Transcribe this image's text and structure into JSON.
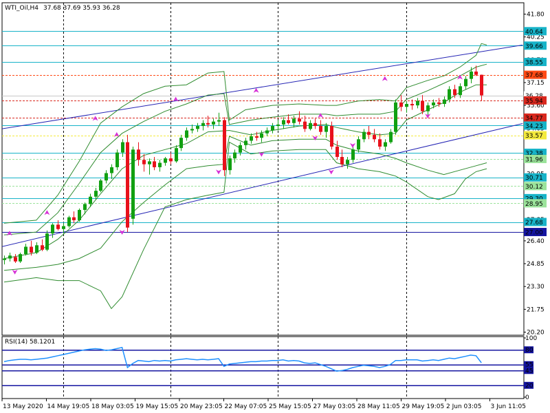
{
  "chart_data": {
    "type": "candlestick",
    "header": {
      "symbol": "WTI_Oil,H4",
      "ohlc": "37.68 37.69 35.93 36.28"
    },
    "y_ticks": [
      "41.80",
      "40.25",
      "38.70",
      "37.15",
      "35.60",
      "34.05",
      "32.50",
      "30.95",
      "29.40",
      "27.85",
      "26.40",
      "24.85",
      "23.30",
      "21.75",
      "20.20"
    ],
    "x_labels": [
      "13 May 2020",
      "14 May 19:05",
      "18 May 03:05",
      "19 May 15:05",
      "20 May 23:05",
      "22 May 07:05",
      "25 May 15:05",
      "27 May 03:05",
      "28 May 11:05",
      "29 May 19:05",
      "2 Jun 03:05",
      "3 Jun 11:05"
    ],
    "levels": [
      {
        "label": "40.64",
        "value": 40.64,
        "color": "#17b3c8",
        "style": "solid"
      },
      {
        "label": "39.66",
        "value": 39.66,
        "color": "#17b3c8",
        "style": "solid"
      },
      {
        "label": "38.55",
        "value": 38.55,
        "color": "#17b3c8",
        "style": "solid"
      },
      {
        "label": "37.68",
        "value": 37.68,
        "color": "#ff4a14",
        "style": "dashed"
      },
      {
        "label": "36.28",
        "value": 36.28,
        "color": "#c8c8c8",
        "style": "solid"
      },
      {
        "label": "35.94",
        "value": 35.94,
        "color": "#d9281e",
        "style": "dashed"
      },
      {
        "label": "34.77",
        "value": 34.77,
        "color": "#d9281e",
        "style": "dashed"
      },
      {
        "label": "34.23",
        "value": 34.23,
        "color": "#17b3c8",
        "style": "solid"
      },
      {
        "label": "33.57",
        "value": 33.57,
        "color": "#f4ea3c",
        "style": "dashed"
      },
      {
        "label": "32.38",
        "value": 32.38,
        "color": "#17b3c8",
        "style": "solid"
      },
      {
        "label": "31.96",
        "value": 31.96,
        "color": "#9be39b",
        "style": "dashed"
      },
      {
        "label": "30.71",
        "value": 30.71,
        "color": "#17b3c8",
        "style": "solid"
      },
      {
        "label": "30.12",
        "value": 30.12,
        "color": "#9be39b",
        "style": "dashed"
      },
      {
        "label": "29.30",
        "value": 29.3,
        "color": "#17b3c8",
        "style": "solid"
      },
      {
        "label": "28.95",
        "value": 28.95,
        "color": "#9be39b",
        "style": "dashed"
      },
      {
        "label": "27.68",
        "value": 27.68,
        "color": "#17b3c8",
        "style": "solid"
      },
      {
        "label": "27.00",
        "value": 27.0,
        "color": "#1414a0",
        "style": "solid"
      }
    ],
    "channel": {
      "upper": [
        [
          0,
          34.0
        ],
        [
          100,
          39.25
        ]
      ],
      "lower": [
        [
          0,
          26.0
        ],
        [
          100,
          33.7
        ]
      ]
    },
    "candles": [
      [
        25.1,
        25.4,
        24.8,
        25.2
      ],
      [
        25.2,
        25.6,
        25.0,
        25.4
      ],
      [
        25.3,
        25.5,
        24.9,
        25.0
      ],
      [
        25.0,
        25.6,
        24.9,
        25.5
      ],
      [
        25.5,
        26.2,
        25.4,
        26.0
      ],
      [
        26.0,
        26.4,
        25.4,
        25.6
      ],
      [
        25.6,
        26.3,
        25.5,
        26.1
      ],
      [
        26.1,
        26.5,
        25.7,
        25.8
      ],
      [
        25.8,
        27.1,
        25.7,
        26.9
      ],
      [
        26.9,
        27.6,
        26.6,
        27.5
      ],
      [
        27.5,
        27.8,
        27.1,
        27.2
      ],
      [
        27.2,
        27.6,
        26.9,
        27.4
      ],
      [
        27.4,
        28.1,
        27.3,
        28.0
      ],
      [
        28.0,
        28.4,
        27.6,
        27.8
      ],
      [
        27.8,
        28.6,
        27.7,
        28.5
      ],
      [
        28.5,
        29.0,
        28.2,
        28.9
      ],
      [
        28.9,
        29.6,
        28.7,
        29.4
      ],
      [
        29.4,
        30.0,
        29.2,
        29.8
      ],
      [
        29.8,
        30.6,
        29.7,
        30.5
      ],
      [
        30.5,
        31.2,
        30.3,
        31.0
      ],
      [
        31.0,
        31.6,
        30.6,
        31.4
      ],
      [
        31.4,
        32.6,
        31.2,
        32.4
      ],
      [
        32.4,
        33.3,
        32.1,
        33.1
      ],
      [
        33.1,
        33.6,
        27.0,
        27.3
      ],
      [
        27.9,
        32.8,
        27.5,
        32.6
      ],
      [
        32.6,
        33.1,
        31.5,
        31.9
      ],
      [
        31.9,
        32.3,
        31.1,
        31.6
      ],
      [
        31.6,
        32.0,
        30.9,
        31.8
      ],
      [
        31.8,
        32.1,
        31.2,
        31.4
      ],
      [
        31.4,
        31.9,
        31.1,
        31.7
      ],
      [
        31.7,
        32.1,
        31.5,
        32.0
      ],
      [
        32.0,
        32.4,
        31.6,
        31.8
      ],
      [
        31.8,
        32.9,
        31.7,
        32.7
      ],
      [
        32.7,
        33.6,
        32.5,
        33.4
      ],
      [
        33.4,
        34.1,
        33.2,
        33.9
      ],
      [
        33.9,
        34.3,
        33.7,
        34.0
      ],
      [
        34.0,
        34.4,
        33.8,
        34.2
      ],
      [
        34.2,
        34.6,
        33.9,
        34.4
      ],
      [
        34.4,
        34.9,
        34.1,
        34.3
      ],
      [
        34.3,
        34.7,
        34.0,
        34.5
      ],
      [
        34.5,
        35.1,
        34.2,
        34.6
      ],
      [
        34.6,
        34.8,
        30.8,
        31.2
      ],
      [
        31.2,
        32.2,
        30.9,
        32.0
      ],
      [
        32.0,
        32.6,
        31.7,
        32.4
      ],
      [
        32.4,
        33.1,
        32.2,
        32.9
      ],
      [
        32.9,
        33.4,
        32.6,
        33.2
      ],
      [
        33.2,
        33.7,
        33.0,
        33.5
      ],
      [
        33.5,
        33.8,
        33.2,
        33.4
      ],
      [
        33.4,
        33.9,
        33.1,
        33.7
      ],
      [
        33.7,
        34.1,
        33.5,
        33.9
      ],
      [
        33.9,
        34.4,
        33.7,
        34.2
      ],
      [
        34.2,
        34.6,
        33.9,
        34.3
      ],
      [
        34.3,
        34.8,
        34.0,
        34.6
      ],
      [
        34.6,
        35.0,
        34.3,
        34.4
      ],
      [
        34.4,
        34.9,
        34.1,
        34.7
      ],
      [
        34.7,
        35.2,
        34.3,
        34.5
      ],
      [
        34.5,
        34.9,
        33.8,
        34.0
      ],
      [
        34.0,
        34.6,
        33.9,
        34.4
      ],
      [
        34.4,
        34.7,
        34.0,
        34.2
      ],
      [
        34.2,
        34.6,
        33.6,
        33.8
      ],
      [
        33.8,
        34.4,
        33.4,
        34.2
      ],
      [
        34.2,
        34.5,
        32.6,
        32.8
      ],
      [
        32.8,
        33.2,
        31.9,
        32.1
      ],
      [
        32.1,
        32.6,
        31.4,
        31.6
      ],
      [
        31.6,
        32.1,
        31.3,
        31.9
      ],
      [
        31.9,
        32.8,
        31.7,
        32.6
      ],
      [
        32.6,
        33.5,
        32.4,
        33.3
      ],
      [
        33.3,
        34.0,
        33.1,
        33.8
      ],
      [
        33.8,
        34.2,
        33.3,
        33.6
      ],
      [
        33.6,
        34.0,
        33.1,
        33.3
      ],
      [
        33.3,
        33.7,
        32.6,
        32.8
      ],
      [
        32.8,
        33.3,
        32.5,
        33.1
      ],
      [
        33.1,
        34.0,
        33.0,
        33.8
      ],
      [
        33.8,
        36.0,
        33.6,
        35.8
      ],
      [
        35.8,
        36.3,
        35.2,
        35.5
      ],
      [
        35.5,
        35.9,
        35.1,
        35.7
      ],
      [
        35.7,
        36.0,
        35.3,
        35.6
      ],
      [
        35.6,
        36.1,
        35.4,
        35.9
      ],
      [
        35.9,
        36.3,
        35.0,
        35.2
      ],
      [
        35.2,
        35.8,
        34.9,
        35.6
      ],
      [
        35.6,
        36.0,
        35.4,
        35.8
      ],
      [
        35.8,
        36.1,
        35.5,
        35.7
      ],
      [
        35.7,
        36.2,
        35.5,
        36.0
      ],
      [
        36.0,
        36.9,
        35.8,
        36.7
      ],
      [
        36.7,
        37.0,
        36.1,
        36.3
      ],
      [
        36.3,
        37.1,
        36.1,
        36.9
      ],
      [
        36.9,
        37.6,
        36.7,
        37.4
      ],
      [
        37.4,
        38.2,
        37.1,
        37.9
      ],
      [
        37.9,
        38.3,
        37.6,
        37.68
      ],
      [
        37.68,
        37.69,
        35.93,
        36.28
      ]
    ],
    "bollinger": {
      "upper": [
        [
          0,
          27.6
        ],
        [
          6,
          27.8
        ],
        [
          10,
          29.5
        ],
        [
          14,
          31.8
        ],
        [
          18,
          34.4
        ],
        [
          22,
          35.5
        ],
        [
          26,
          36.4
        ],
        [
          30,
          36.9
        ],
        [
          34,
          37.0
        ],
        [
          38,
          37.8
        ],
        [
          41,
          37.9
        ],
        [
          42,
          34.6
        ],
        [
          45,
          35.3
        ],
        [
          50,
          35.6
        ],
        [
          55,
          35.7
        ],
        [
          60,
          35.6
        ],
        [
          62,
          35.6
        ],
        [
          66,
          35.9
        ],
        [
          70,
          36.0
        ],
        [
          73,
          35.9
        ],
        [
          75,
          36.8
        ],
        [
          79,
          37.3
        ],
        [
          82,
          37.6
        ],
        [
          85,
          38.2
        ],
        [
          88,
          39.0
        ],
        [
          89,
          39.8
        ],
        [
          90,
          39.7
        ]
      ],
      "middle": [
        [
          0,
          25.2
        ],
        [
          6,
          25.6
        ],
        [
          10,
          26.5
        ],
        [
          14,
          27.8
        ],
        [
          18,
          29.6
        ],
        [
          22,
          31.3
        ],
        [
          26,
          32.2
        ],
        [
          30,
          32.6
        ],
        [
          34,
          33.0
        ],
        [
          38,
          33.8
        ],
        [
          42,
          33.9
        ],
        [
          46,
          33.6
        ],
        [
          50,
          33.9
        ],
        [
          55,
          34.2
        ],
        [
          60,
          34.3
        ],
        [
          62,
          34.1
        ],
        [
          66,
          33.8
        ],
        [
          70,
          33.6
        ],
        [
          73,
          33.7
        ],
        [
          75,
          34.6
        ],
        [
          79,
          35.3
        ],
        [
          82,
          35.8
        ],
        [
          85,
          36.5
        ],
        [
          88,
          37.0
        ],
        [
          90,
          37.0
        ]
      ],
      "lower": [
        [
          0,
          23.6
        ],
        [
          6,
          23.9
        ],
        [
          10,
          23.7
        ],
        [
          14,
          23.7
        ],
        [
          18,
          23.0
        ],
        [
          20,
          21.8
        ],
        [
          22,
          22.6
        ],
        [
          26,
          25.8
        ],
        [
          30,
          28.7
        ],
        [
          34,
          29.2
        ],
        [
          38,
          29.5
        ],
        [
          41,
          29.7
        ],
        [
          42,
          33.1
        ],
        [
          46,
          32.3
        ],
        [
          50,
          32.5
        ],
        [
          55,
          32.6
        ],
        [
          60,
          32.6
        ],
        [
          62,
          31.7
        ],
        [
          66,
          31.3
        ],
        [
          70,
          31.1
        ],
        [
          73,
          30.8
        ],
        [
          75,
          30.4
        ],
        [
          79,
          29.4
        ],
        [
          81,
          29.2
        ],
        [
          84,
          29.6
        ],
        [
          86,
          30.6
        ],
        [
          88,
          31.1
        ],
        [
          90,
          31.3
        ]
      ]
    },
    "bollinger_inner": {
      "upper": [
        [
          0,
          26.8
        ],
        [
          6,
          27.0
        ],
        [
          10,
          28.3
        ],
        [
          14,
          30.3
        ],
        [
          18,
          32.4
        ],
        [
          22,
          33.7
        ],
        [
          26,
          34.5
        ],
        [
          30,
          35.2
        ],
        [
          34,
          35.7
        ],
        [
          38,
          36.3
        ],
        [
          41,
          36.4
        ],
        [
          42,
          34.3
        ],
        [
          46,
          34.6
        ],
        [
          50,
          34.8
        ],
        [
          55,
          35.0
        ],
        [
          60,
          35.0
        ],
        [
          62,
          34.9
        ],
        [
          66,
          35.0
        ],
        [
          70,
          35.0
        ],
        [
          73,
          35.2
        ],
        [
          75,
          36.0
        ],
        [
          79,
          36.6
        ],
        [
          82,
          37.1
        ],
        [
          85,
          37.6
        ],
        [
          88,
          38.2
        ],
        [
          90,
          38.4
        ]
      ],
      "lower": [
        [
          0,
          24.4
        ],
        [
          6,
          24.6
        ],
        [
          10,
          24.8
        ],
        [
          14,
          25.2
        ],
        [
          18,
          25.9
        ],
        [
          22,
          27.7
        ],
        [
          26,
          29.0
        ],
        [
          30,
          30.2
        ],
        [
          34,
          31.3
        ],
        [
          38,
          31.5
        ],
        [
          41,
          31.6
        ],
        [
          42,
          33.5
        ],
        [
          46,
          32.9
        ],
        [
          50,
          33.2
        ],
        [
          55,
          33.3
        ],
        [
          60,
          33.3
        ],
        [
          62,
          32.9
        ],
        [
          66,
          32.5
        ],
        [
          70,
          32.3
        ],
        [
          73,
          32.0
        ],
        [
          75,
          31.7
        ],
        [
          79,
          31.2
        ],
        [
          82,
          30.9
        ],
        [
          85,
          31.2
        ],
        [
          88,
          31.5
        ],
        [
          90,
          31.7
        ]
      ]
    },
    "fractals_up": [
      [
        1,
        26.9
      ],
      [
        8,
        28.3
      ],
      [
        17,
        34.7
      ],
      [
        21,
        33.6
      ],
      [
        32,
        36.0
      ],
      [
        47,
        36.6
      ],
      [
        59,
        34.9
      ],
      [
        71,
        37.4
      ],
      [
        85,
        37.5
      ]
    ],
    "fractals_down": [
      [
        2,
        24.3
      ],
      [
        22,
        27.0
      ],
      [
        40,
        31.1
      ],
      [
        48,
        32.3
      ],
      [
        58,
        33.4
      ],
      [
        61,
        31.1
      ],
      [
        65,
        32.9
      ],
      [
        79,
        34.9
      ]
    ],
    "vlines_at": [
      11,
      31,
      51,
      75
    ],
    "rsi": {
      "label": "RSI(14) 58.1201",
      "ticks": [
        "100",
        "80",
        "55",
        "45",
        "20",
        "0"
      ],
      "levels": [
        80,
        55,
        45,
        20
      ],
      "values": [
        60,
        62,
        63,
        64,
        64,
        63,
        64,
        65,
        66,
        68,
        70,
        72,
        74,
        76,
        78,
        80,
        81,
        82,
        81,
        79,
        80,
        82,
        84,
        50,
        57,
        62,
        61,
        60,
        62,
        61,
        62,
        61,
        63,
        64,
        65,
        64,
        63,
        64,
        63,
        64,
        65,
        52,
        56,
        57,
        58,
        59,
        60,
        60,
        61,
        61,
        62,
        62,
        63,
        61,
        62,
        61,
        58,
        57,
        58,
        55,
        52,
        48,
        44,
        45,
        47,
        50,
        52,
        54,
        53,
        52,
        50,
        52,
        55,
        62,
        62,
        63,
        63,
        63,
        61,
        62,
        63,
        62,
        64,
        66,
        65,
        67,
        69,
        71,
        70,
        58.12
      ]
    }
  }
}
